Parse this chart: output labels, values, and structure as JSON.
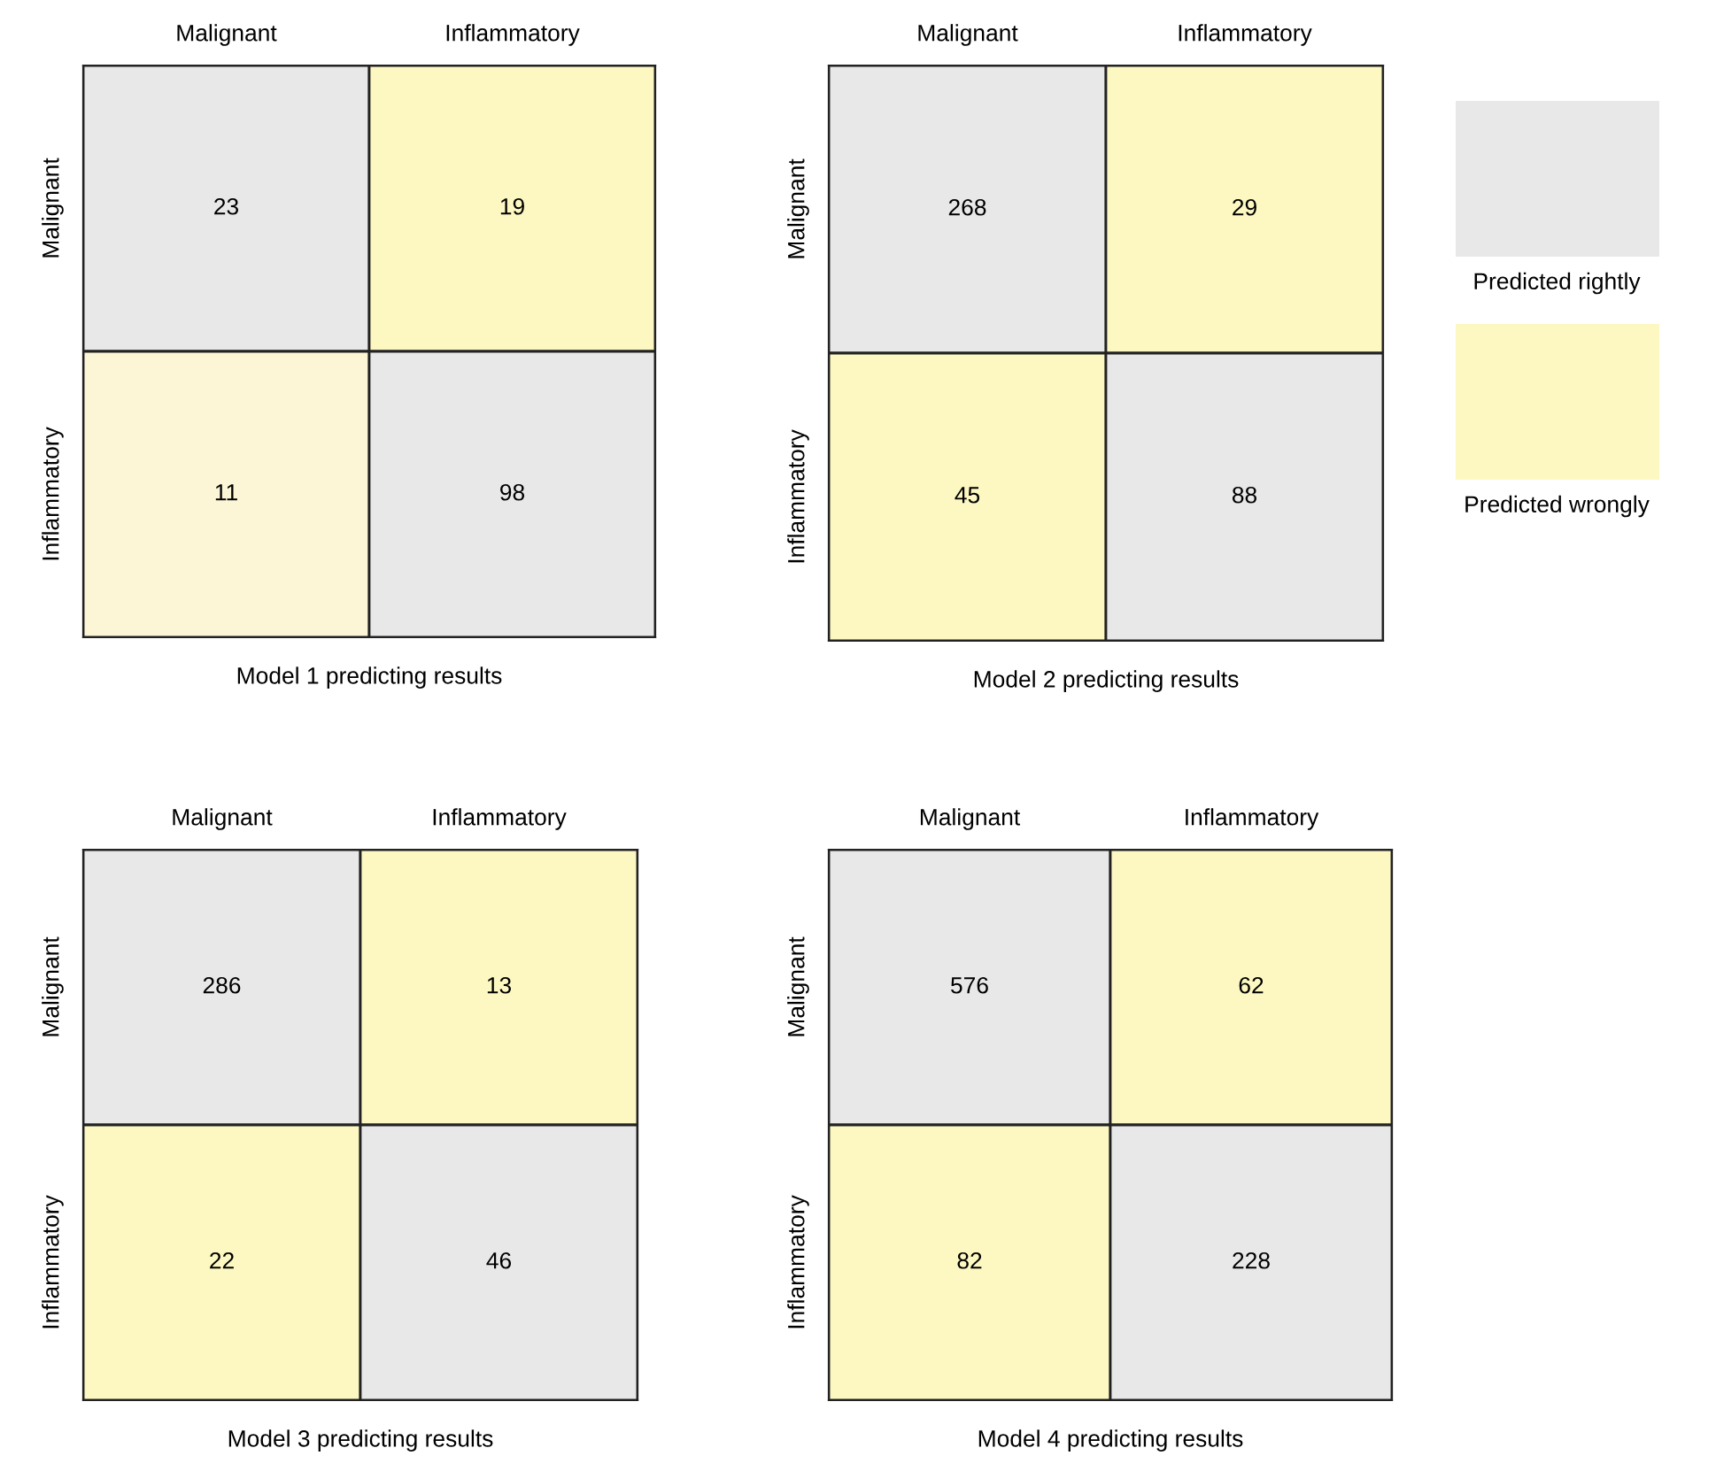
{
  "chart_data": [
    {
      "type": "heatmap",
      "xlabel": "Model 1 predicting results",
      "categories": [
        "Malignant",
        "Inflammatory"
      ],
      "y_categories": [
        "Malignant",
        "Inflammatory"
      ],
      "cells": [
        [
          23,
          19
        ],
        [
          11,
          98
        ]
      ],
      "colors": [
        [
          "#e8e8e8",
          "#fdf8c2"
        ],
        [
          "#fdf6d6",
          "#e8e8e8"
        ]
      ],
      "data_labels": true
    },
    {
      "type": "heatmap",
      "xlabel": "Model 2 predicting results",
      "categories": [
        "Malignant",
        "Inflammatory"
      ],
      "y_categories": [
        "Malignant",
        "Inflammatory"
      ],
      "cells": [
        [
          268,
          29
        ],
        [
          45,
          88
        ]
      ],
      "colors": [
        [
          "#e8e8e8",
          "#fdf8c2"
        ],
        [
          "#fdf8c2",
          "#e8e8e8"
        ]
      ],
      "data_labels": true,
      "annotations": [
        "Predicted rightly",
        "Predicted wrongly"
      ]
    },
    {
      "type": "heatmap",
      "xlabel": "Model 3 predicting results",
      "categories": [
        "Malignant",
        "Inflammatory"
      ],
      "y_categories": [
        "Malignant",
        "Inflammatory"
      ],
      "cells": [
        [
          286,
          13
        ],
        [
          22,
          46
        ]
      ],
      "colors": [
        [
          "#e8e8e8",
          "#fdf8c2"
        ],
        [
          "#fdf8c2",
          "#e8e8e8"
        ]
      ],
      "data_labels": true
    },
    {
      "type": "heatmap",
      "xlabel": "Model 4 predicting results",
      "categories": [
        "Malignant",
        "Inflammatory"
      ],
      "y_categories": [
        "Malignant",
        "Inflammatory"
      ],
      "cells": [
        [
          576,
          62
        ],
        [
          82,
          228
        ]
      ],
      "colors": [
        [
          "#e8e8e8",
          "#fdf8c2"
        ],
        [
          "#fdf8c2",
          "#e8e8e8"
        ]
      ],
      "data_labels": true
    }
  ]
}
